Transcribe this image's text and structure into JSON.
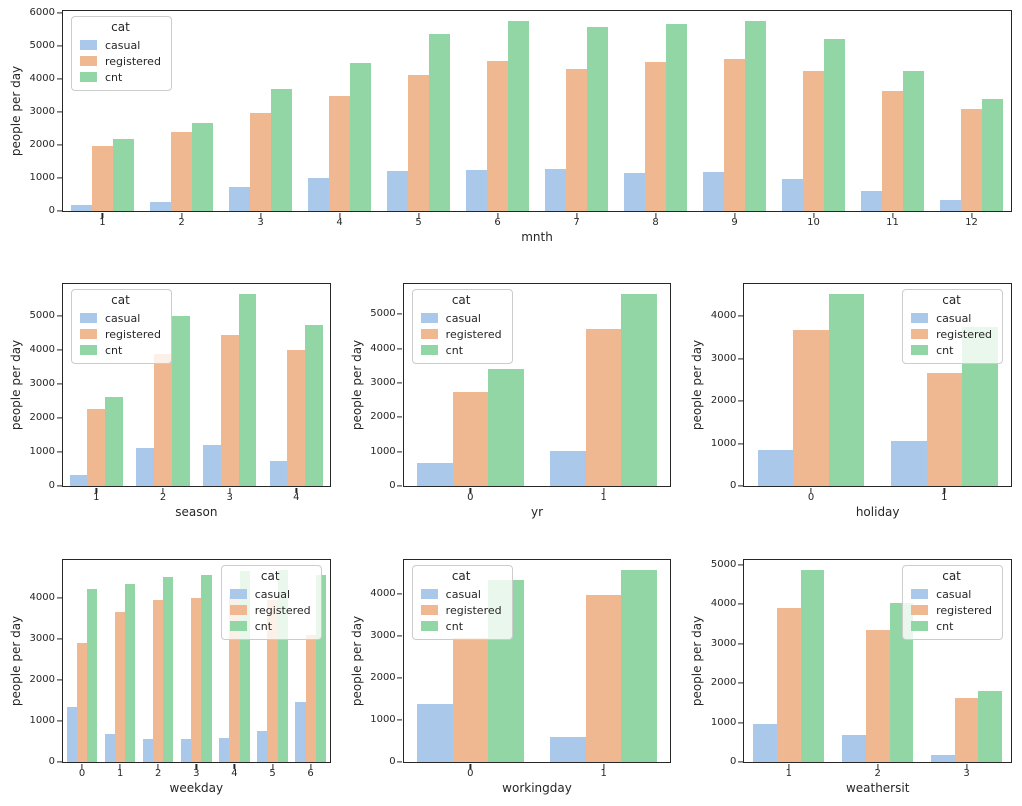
{
  "figure": {
    "ylabel": "people per day",
    "legend_title": "cat",
    "series_colors": {
      "casual": "#a9c8ea",
      "registered": "#f0b890",
      "cnt": "#92d6a6"
    },
    "text_color": "#262626",
    "spine_color": "#262626"
  },
  "chart_data": [
    {
      "type": "bar",
      "xlabel": "mnth",
      "ylabel": "people per day",
      "categories": [
        "1",
        "2",
        "3",
        "4",
        "5",
        "6",
        "7",
        "8",
        "9",
        "10",
        "11",
        "12"
      ],
      "series": [
        {
          "name": "casual",
          "color": "#a9c8ea",
          "values": [
            194,
            262,
            716,
            1013,
            1214,
            1231,
            1260,
            1161,
            1168,
            963,
            609,
            325
          ]
        },
        {
          "name": "registered",
          "color": "#f0b890",
          "values": [
            1982,
            2393,
            2976,
            3471,
            4135,
            4540,
            4303,
            4502,
            4598,
            4235,
            3637,
            3077
          ]
        },
        {
          "name": "cnt",
          "color": "#92d6a6",
          "values": [
            2176,
            2655,
            3692,
            4485,
            5350,
            5772,
            5564,
            5664,
            5766,
            5199,
            4247,
            3404
          ]
        }
      ],
      "ylim": [
        0,
        6061
      ],
      "yticks": [
        0,
        1000,
        2000,
        3000,
        4000,
        5000,
        6000
      ],
      "grid": false,
      "legend": {
        "title": "cat",
        "position": "upper-left"
      }
    },
    {
      "type": "bar",
      "xlabel": "season",
      "ylabel": "people per day",
      "categories": [
        "1",
        "2",
        "3",
        "4"
      ],
      "series": [
        {
          "name": "casual",
          "color": "#a9c8ea",
          "values": [
            335,
            1106,
            1203,
            729
          ]
        },
        {
          "name": "registered",
          "color": "#f0b890",
          "values": [
            2269,
            3886,
            4442,
            3999
          ]
        },
        {
          "name": "cnt",
          "color": "#92d6a6",
          "values": [
            2604,
            4992,
            5644,
            4729
          ]
        }
      ],
      "ylim": [
        0,
        5926
      ],
      "yticks": [
        0,
        1000,
        2000,
        3000,
        4000,
        5000
      ],
      "grid": false,
      "legend": {
        "title": "cat",
        "position": "upper-left"
      }
    },
    {
      "type": "bar",
      "xlabel": "yr",
      "ylabel": "people per day",
      "categories": [
        "0",
        "1"
      ],
      "series": [
        {
          "name": "casual",
          "color": "#a9c8ea",
          "values": [
            677,
            1018
          ]
        },
        {
          "name": "registered",
          "color": "#f0b890",
          "values": [
            2728,
            4581
          ]
        },
        {
          "name": "cnt",
          "color": "#92d6a6",
          "values": [
            3406,
            5600
          ]
        }
      ],
      "ylim": [
        0,
        5880
      ],
      "yticks": [
        0,
        1000,
        2000,
        3000,
        4000,
        5000
      ],
      "grid": false,
      "legend": {
        "title": "cat",
        "position": "upper-left"
      }
    },
    {
      "type": "bar",
      "xlabel": "holiday",
      "ylabel": "people per day",
      "categories": [
        "0",
        "1"
      ],
      "series": [
        {
          "name": "casual",
          "color": "#a9c8ea",
          "values": [
            841,
            1064
          ]
        },
        {
          "name": "registered",
          "color": "#f0b890",
          "values": [
            3674,
            2670
          ]
        },
        {
          "name": "cnt",
          "color": "#92d6a6",
          "values": [
            4527,
            3735
          ]
        }
      ],
      "ylim": [
        0,
        4753
      ],
      "yticks": [
        0,
        1000,
        2000,
        3000,
        4000
      ],
      "grid": false,
      "legend": {
        "title": "cat",
        "position": "upper-right"
      }
    },
    {
      "type": "bar",
      "xlabel": "weekday",
      "ylabel": "people per day",
      "categories": [
        "0",
        "1",
        "2",
        "3",
        "4",
        "5",
        "6"
      ],
      "series": [
        {
          "name": "casual",
          "color": "#a9c8ea",
          "values": [
            1338,
            674,
            556,
            551,
            591,
            752,
            1465
          ]
        },
        {
          "name": "registered",
          "color": "#f0b890",
          "values": [
            2891,
            3664,
            3954,
            3997,
            4076,
            3938,
            3085
          ]
        },
        {
          "name": "cnt",
          "color": "#92d6a6",
          "values": [
            4229,
            4338,
            4511,
            4549,
            4667,
            4690,
            4551
          ]
        }
      ],
      "ylim": [
        0,
        4925
      ],
      "yticks": [
        0,
        1000,
        2000,
        3000,
        4000
      ],
      "grid": false,
      "legend": {
        "title": "cat",
        "position": "upper-right"
      }
    },
    {
      "type": "bar",
      "xlabel": "workingday",
      "ylabel": "people per day",
      "categories": [
        "0",
        "1"
      ],
      "series": [
        {
          "name": "casual",
          "color": "#a9c8ea",
          "values": [
            1371,
            607
          ]
        },
        {
          "name": "registered",
          "color": "#f0b890",
          "values": [
            2959,
            3978
          ]
        },
        {
          "name": "cnt",
          "color": "#92d6a6",
          "values": [
            4330,
            4585
          ]
        }
      ],
      "ylim": [
        0,
        4814
      ],
      "yticks": [
        0,
        1000,
        2000,
        3000,
        4000
      ],
      "grid": false,
      "legend": {
        "title": "cat",
        "position": "upper-left"
      }
    },
    {
      "type": "bar",
      "xlabel": "weathersit",
      "ylabel": "people per day",
      "categories": [
        "1",
        "2",
        "3"
      ],
      "series": [
        {
          "name": "casual",
          "color": "#a9c8ea",
          "values": [
            964,
            687,
            185
          ]
        },
        {
          "name": "registered",
          "color": "#f0b890",
          "values": [
            3913,
            3349,
            1618
          ]
        },
        {
          "name": "cnt",
          "color": "#92d6a6",
          "values": [
            4877,
            4036,
            1803
          ]
        }
      ],
      "ylim": [
        0,
        5121
      ],
      "yticks": [
        0,
        1000,
        2000,
        3000,
        4000,
        5000
      ],
      "grid": false,
      "legend": {
        "title": "cat",
        "position": "upper-right"
      }
    }
  ]
}
